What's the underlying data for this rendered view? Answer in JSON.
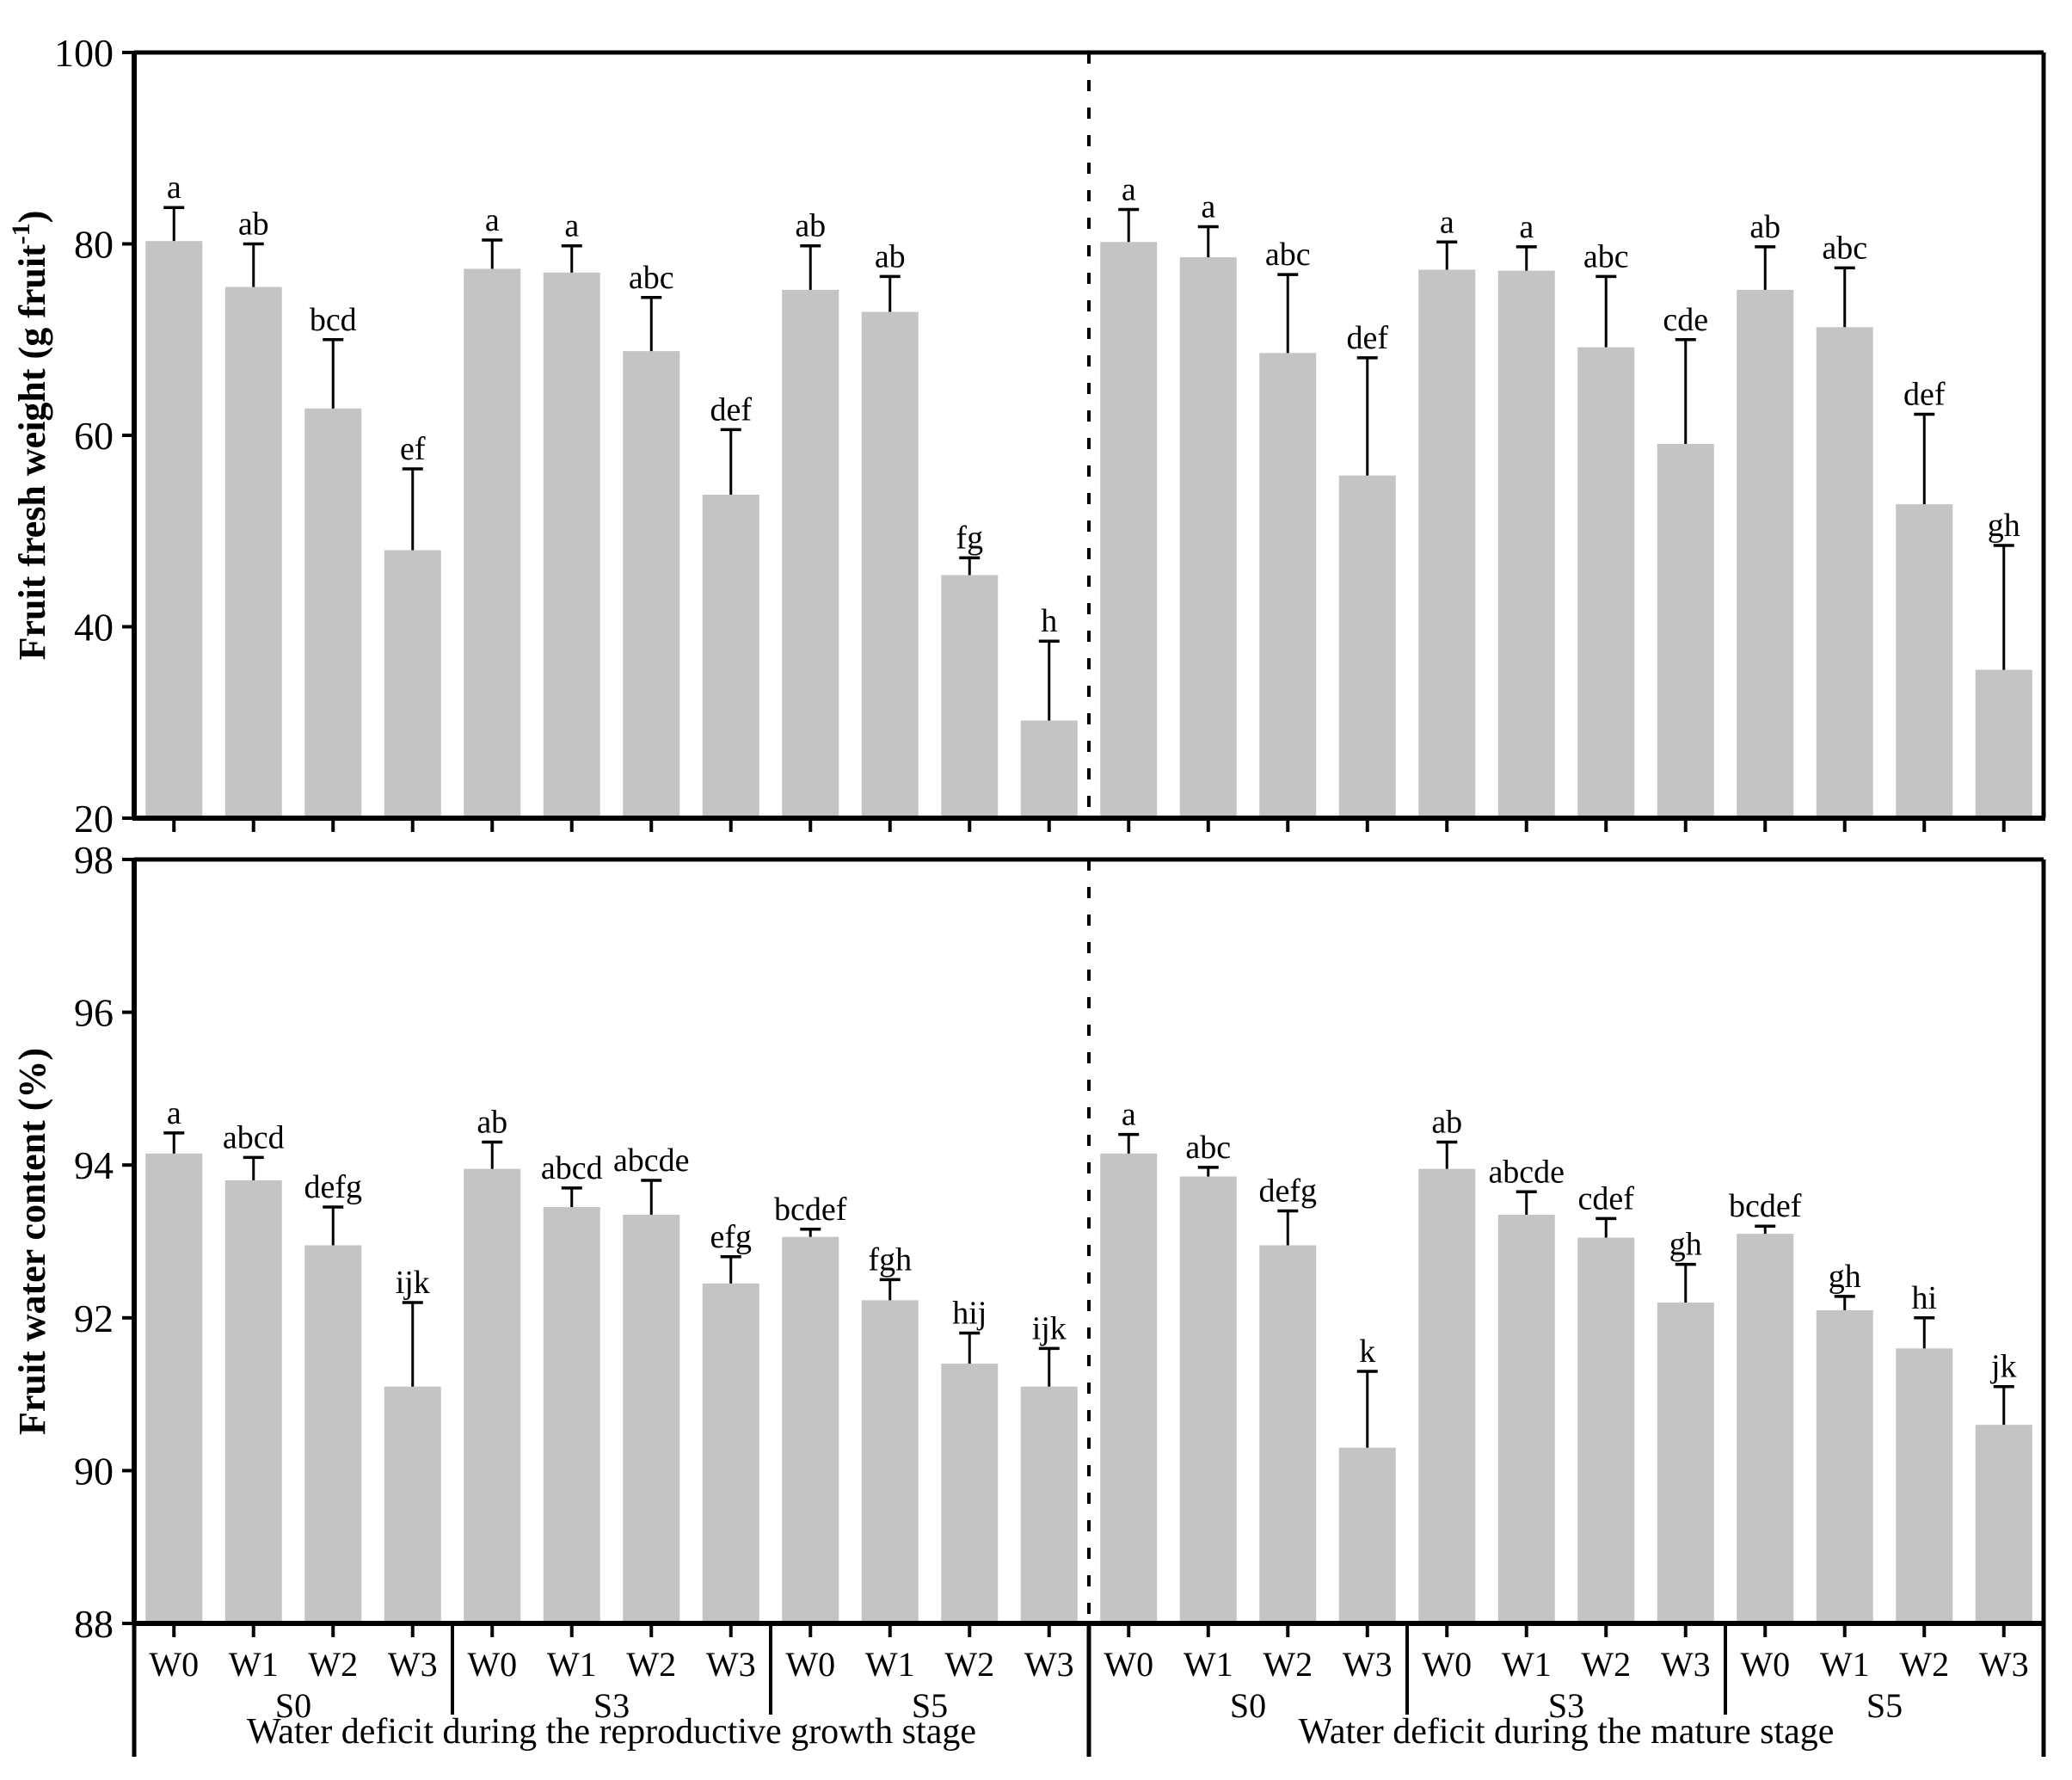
{
  "chart_data": [
    {
      "type": "bar",
      "panel": "fruit-fresh-weight",
      "ylabel_pre": "Fruit fresh weight (g fruit",
      "ylabel_sup": "-1",
      "ylabel_post": ")",
      "ylim": [
        20,
        100
      ],
      "yticks": [
        20,
        40,
        60,
        80,
        100
      ],
      "bar_color": "#c4c4c4",
      "halves": [
        {
          "caption": "Water deficit during the reproductive growth stage",
          "groups": [
            {
              "label": "S0",
              "bars": [
                {
                  "label": "W0",
                  "value": 80.3,
                  "err": 83.8,
                  "letter": "a"
                },
                {
                  "label": "W1",
                  "value": 75.5,
                  "err": 80.0,
                  "letter": "ab"
                },
                {
                  "label": "W2",
                  "value": 62.8,
                  "err": 70.0,
                  "letter": "bcd"
                },
                {
                  "label": "W3",
                  "value": 48.0,
                  "err": 56.5,
                  "letter": "ef"
                }
              ]
            },
            {
              "label": "S3",
              "bars": [
                {
                  "label": "W0",
                  "value": 77.4,
                  "err": 80.4,
                  "letter": "a"
                },
                {
                  "label": "W1",
                  "value": 77.0,
                  "err": 79.8,
                  "letter": "a"
                },
                {
                  "label": "W2",
                  "value": 68.8,
                  "err": 74.4,
                  "letter": "abc"
                },
                {
                  "label": "W3",
                  "value": 53.8,
                  "err": 60.6,
                  "letter": "def"
                }
              ]
            },
            {
              "label": "S5",
              "bars": [
                {
                  "label": "W0",
                  "value": 75.2,
                  "err": 79.8,
                  "letter": "ab"
                },
                {
                  "label": "W1",
                  "value": 72.9,
                  "err": 76.6,
                  "letter": "ab"
                },
                {
                  "label": "W2",
                  "value": 45.4,
                  "err": 47.2,
                  "letter": "fg"
                },
                {
                  "label": "W3",
                  "value": 30.2,
                  "err": 38.5,
                  "letter": "h"
                }
              ]
            }
          ]
        },
        {
          "caption": "Water deficit during the mature stage",
          "groups": [
            {
              "label": "S0",
              "bars": [
                {
                  "label": "W0",
                  "value": 80.2,
                  "err": 83.6,
                  "letter": "a"
                },
                {
                  "label": "W1",
                  "value": 78.6,
                  "err": 81.8,
                  "letter": "a"
                },
                {
                  "label": "W2",
                  "value": 68.6,
                  "err": 76.8,
                  "letter": "abc"
                },
                {
                  "label": "W3",
                  "value": 55.8,
                  "err": 68.1,
                  "letter": "def"
                }
              ]
            },
            {
              "label": "S3",
              "bars": [
                {
                  "label": "W0",
                  "value": 77.3,
                  "err": 80.2,
                  "letter": "a"
                },
                {
                  "label": "W1",
                  "value": 77.2,
                  "err": 79.7,
                  "letter": "a"
                },
                {
                  "label": "W2",
                  "value": 69.2,
                  "err": 76.6,
                  "letter": "abc"
                },
                {
                  "label": "W3",
                  "value": 59.1,
                  "err": 70.0,
                  "letter": "cde"
                }
              ]
            },
            {
              "label": "S5",
              "bars": [
                {
                  "label": "W0",
                  "value": 75.2,
                  "err": 79.7,
                  "letter": "ab"
                },
                {
                  "label": "W1",
                  "value": 71.3,
                  "err": 77.5,
                  "letter": "abc"
                },
                {
                  "label": "W2",
                  "value": 52.8,
                  "err": 62.2,
                  "letter": "def"
                },
                {
                  "label": "W3",
                  "value": 35.5,
                  "err": 48.5,
                  "letter": "gh"
                }
              ]
            }
          ]
        }
      ]
    },
    {
      "type": "bar",
      "panel": "fruit-water-content",
      "ylabel_pre": "Fruit water content (%)",
      "ylabel_sup": "",
      "ylabel_post": "",
      "ylim": [
        88,
        98
      ],
      "yticks": [
        88,
        90,
        92,
        94,
        96,
        98
      ],
      "bar_color": "#c4c4c4",
      "halves": [
        {
          "caption": "Water deficit during the reproductive growth stage",
          "groups": [
            {
              "label": "S0",
              "bars": [
                {
                  "label": "W0",
                  "value": 94.15,
                  "err": 94.42,
                  "letter": "a"
                },
                {
                  "label": "W1",
                  "value": 93.8,
                  "err": 94.1,
                  "letter": "abcd"
                },
                {
                  "label": "W2",
                  "value": 92.95,
                  "err": 93.45,
                  "letter": "defg"
                },
                {
                  "label": "W3",
                  "value": 91.1,
                  "err": 92.2,
                  "letter": "ijk"
                }
              ]
            },
            {
              "label": "S3",
              "bars": [
                {
                  "label": "W0",
                  "value": 93.95,
                  "err": 94.3,
                  "letter": "ab"
                },
                {
                  "label": "W1",
                  "value": 93.45,
                  "err": 93.7,
                  "letter": "abcd"
                },
                {
                  "label": "W2",
                  "value": 93.35,
                  "err": 93.8,
                  "letter": "abcde"
                },
                {
                  "label": "W3",
                  "value": 92.45,
                  "err": 92.8,
                  "letter": "efg"
                }
              ]
            },
            {
              "label": "S5",
              "bars": [
                {
                  "label": "W0",
                  "value": 93.06,
                  "err": 93.16,
                  "letter": "bcdef"
                },
                {
                  "label": "W1",
                  "value": 92.23,
                  "err": 92.5,
                  "letter": "fgh"
                },
                {
                  "label": "W2",
                  "value": 91.4,
                  "err": 91.8,
                  "letter": "hij"
                },
                {
                  "label": "W3",
                  "value": 91.1,
                  "err": 91.6,
                  "letter": "ijk"
                }
              ]
            }
          ]
        },
        {
          "caption": "Water deficit during the mature stage",
          "groups": [
            {
              "label": "S0",
              "bars": [
                {
                  "label": "W0",
                  "value": 94.15,
                  "err": 94.4,
                  "letter": "a"
                },
                {
                  "label": "W1",
                  "value": 93.85,
                  "err": 93.97,
                  "letter": "abc"
                },
                {
                  "label": "W2",
                  "value": 92.95,
                  "err": 93.4,
                  "letter": "defg"
                },
                {
                  "label": "W3",
                  "value": 90.3,
                  "err": 91.3,
                  "letter": "k"
                }
              ]
            },
            {
              "label": "S3",
              "bars": [
                {
                  "label": "W0",
                  "value": 93.95,
                  "err": 94.3,
                  "letter": "ab"
                },
                {
                  "label": "W1",
                  "value": 93.35,
                  "err": 93.65,
                  "letter": "abcde"
                },
                {
                  "label": "W2",
                  "value": 93.05,
                  "err": 93.3,
                  "letter": "cdef"
                },
                {
                  "label": "W3",
                  "value": 92.2,
                  "err": 92.7,
                  "letter": "gh"
                }
              ]
            },
            {
              "label": "S5",
              "bars": [
                {
                  "label": "W0",
                  "value": 93.1,
                  "err": 93.2,
                  "letter": "bcdef"
                },
                {
                  "label": "W1",
                  "value": 92.1,
                  "err": 92.28,
                  "letter": "gh"
                },
                {
                  "label": "W2",
                  "value": 91.6,
                  "err": 92.0,
                  "letter": "hi"
                },
                {
                  "label": "W3",
                  "value": 90.6,
                  "err": 91.1,
                  "letter": "jk"
                }
              ]
            }
          ]
        }
      ]
    }
  ],
  "colors": {
    "bar_fill": "#c4c4c4",
    "axis": "#000000",
    "text": "#000000"
  }
}
